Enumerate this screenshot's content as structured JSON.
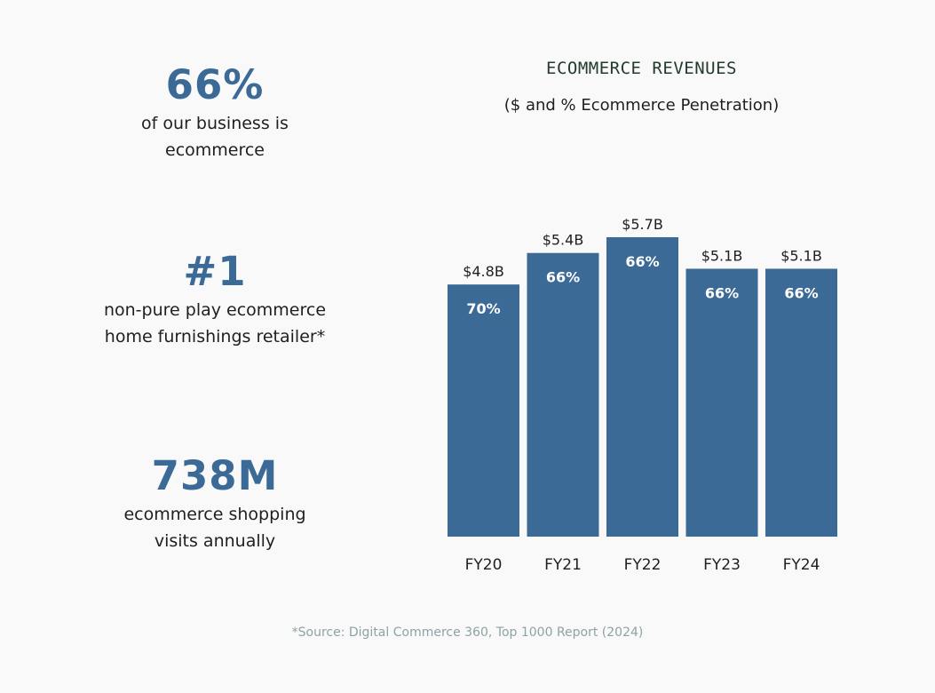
{
  "stats": [
    {
      "value": "66%",
      "desc_line1": "of our business is",
      "desc_line2": "ecommerce"
    },
    {
      "value": "#1",
      "desc_line1": "non-pure play ecommerce",
      "desc_line2": "home furnishings retailer*"
    },
    {
      "value": "738M",
      "desc_line1": "ecommerce shopping",
      "desc_line2": "visits annually"
    }
  ],
  "source": "*Source: Digital Commerce 360, Top 1000 Report  (2024)",
  "colors": {
    "bar": "#3c6a96",
    "accent": "#3b6a97"
  },
  "chart_data": {
    "type": "bar",
    "title": "ECOMMERCE REVENUES",
    "subtitle": "($ and % Ecommerce Penetration)",
    "categories": [
      "FY20",
      "FY21",
      "FY22",
      "FY23",
      "FY24"
    ],
    "values": [
      4.8,
      5.4,
      5.7,
      5.1,
      5.1
    ],
    "value_labels": [
      "$4.8B",
      "$5.4B",
      "$5.7B",
      "$5.1B",
      "$5.1B"
    ],
    "penetration_labels": [
      "70%",
      "66%",
      "66%",
      "66%",
      "66%"
    ],
    "unit": "$B",
    "grid": false,
    "legend": "none"
  }
}
